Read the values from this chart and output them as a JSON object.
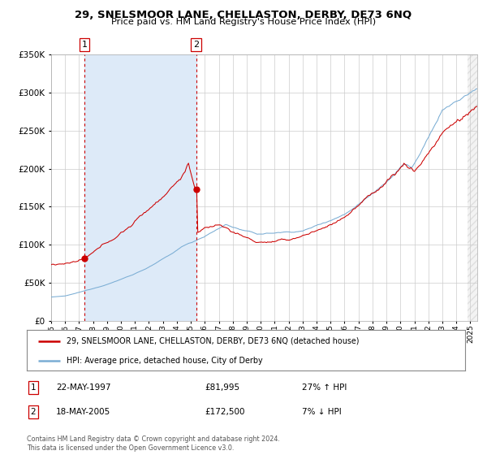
{
  "title": "29, SNELSMOOR LANE, CHELLASTON, DERBY, DE73 6NQ",
  "subtitle": "Price paid vs. HM Land Registry's House Price Index (HPI)",
  "legend_property": "29, SNELSMOOR LANE, CHELLASTON, DERBY, DE73 6NQ (detached house)",
  "legend_hpi": "HPI: Average price, detached house, City of Derby",
  "footer_line1": "Contains HM Land Registry data © Crown copyright and database right 2024.",
  "footer_line2": "This data is licensed under the Open Government Licence v3.0.",
  "sale1_date_str": "22-MAY-1997",
  "sale1_price_str": "£81,995",
  "sale1_hpi_str": "27% ↑ HPI",
  "sale2_date_str": "18-MAY-2005",
  "sale2_price_str": "£172,500",
  "sale2_hpi_str": "7% ↓ HPI",
  "sale1_year": 1997.38,
  "sale2_year": 2005.38,
  "sale1_price": 81995,
  "sale2_price": 172500,
  "ylim_max": 350000,
  "xlim_start": 1995.0,
  "xlim_end": 2025.5,
  "property_color": "#cc0000",
  "hpi_color": "#7aadd4",
  "shade_color": "#ddeaf8",
  "vline_color": "#cc0000",
  "background_color": "#ffffff",
  "grid_color": "#cccccc"
}
